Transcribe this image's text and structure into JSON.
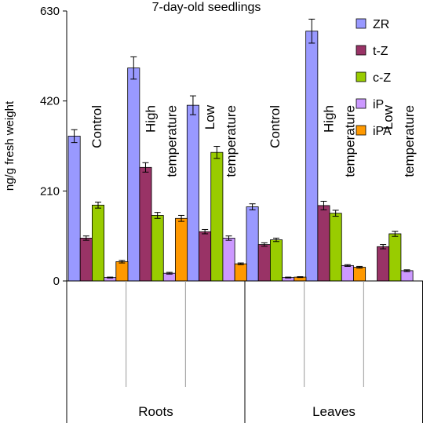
{
  "chart_data": {
    "type": "bar",
    "title": "7-day-old seedlings",
    "ylabel": "ng/g fresh weight",
    "xlabel": "",
    "ylim": [
      0,
      630
    ],
    "yticks": [
      0,
      210,
      420,
      630
    ],
    "tick_labels": [
      "0",
      "210",
      "420",
      "630"
    ],
    "grid": false,
    "legend_position": "top-right",
    "groups": [
      {
        "label": "Roots",
        "conditions": [
          [
            "Control"
          ],
          [
            "High",
            "temperature"
          ],
          [
            "Low",
            "temperature"
          ]
        ]
      },
      {
        "label": "Leaves",
        "conditions": [
          [
            "Control"
          ],
          [
            "High",
            "temperature"
          ],
          [
            "Low",
            "temperature"
          ]
        ]
      }
    ],
    "categories": [
      "Roots - Control",
      "Roots - High temperature",
      "Roots - Low temperature",
      "Leaves - Control",
      "Leaves - High temperature",
      "Leaves - Low temperature"
    ],
    "series": [
      {
        "name": "ZR",
        "color": "#9999ff",
        "values": [
          338,
          497,
          410,
          173,
          583,
          0
        ],
        "errors": [
          15,
          26,
          22,
          7,
          28,
          0
        ]
      },
      {
        "name": "t-Z",
        "color": "#993366",
        "values": [
          100,
          265,
          115,
          85,
          176,
          80
        ],
        "errors": [
          5,
          11,
          5,
          4,
          10,
          5
        ]
      },
      {
        "name": "c-Z",
        "color": "#99cc00",
        "values": [
          177,
          153,
          300,
          96,
          158,
          110
        ],
        "errors": [
          7,
          7,
          14,
          4,
          7,
          6
        ]
      },
      {
        "name": "iP",
        "color": "#cc99ff",
        "values": [
          8,
          18,
          100,
          8,
          36,
          24
        ],
        "errors": [
          1,
          2,
          5,
          1,
          2,
          2
        ]
      },
      {
        "name": "iPA",
        "color": "#ff9900",
        "values": [
          45,
          146,
          40,
          9,
          32,
          0
        ],
        "errors": [
          3,
          7,
          2,
          1,
          2,
          0
        ]
      }
    ]
  }
}
